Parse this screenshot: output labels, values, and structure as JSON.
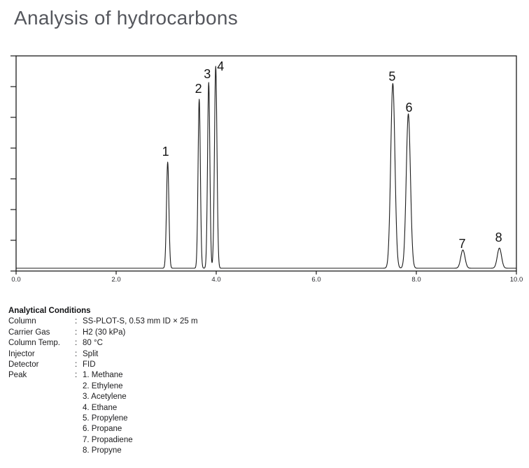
{
  "title": "Analysis of hydrocarbons",
  "chart_data": {
    "type": "line",
    "description": "Gas chromatogram (FID signal vs retention time, min)",
    "xlabel": "",
    "ylabel": "",
    "xlim": [
      0.0,
      10.0
    ],
    "ylim": [
      0.0,
      1.0
    ],
    "grid": false,
    "legend": "none",
    "x_ticks": [
      0.0,
      2.0,
      4.0,
      6.0,
      8.0,
      10.0
    ],
    "x_tick_labels": [
      "0.0",
      "2.0",
      "4.0",
      "6.0",
      "8.0",
      "10.0"
    ],
    "y_axis": {
      "tick_count": 8,
      "labels_visible": false
    },
    "baseline_value": 0.0,
    "peaks": [
      {
        "label": "1",
        "name": "Methane",
        "time": 3.03,
        "height": 0.5,
        "sigma": 0.024,
        "label_dx": -3,
        "label_dy": -9
      },
      {
        "label": "2",
        "name": "Ethylene",
        "time": 3.66,
        "height": 0.796,
        "sigma": 0.023,
        "label_dx": -1,
        "label_dy": -9
      },
      {
        "label": "3",
        "name": "Acetylene",
        "time": 3.85,
        "height": 0.875,
        "sigma": 0.023,
        "label_dx": -2,
        "label_dy": -6
      },
      {
        "label": "4",
        "name": "Ethane",
        "time": 3.99,
        "height": 0.951,
        "sigma": 0.025,
        "label_dx": 7,
        "label_dy": 6
      },
      {
        "label": "5",
        "name": "Propylene",
        "time": 7.53,
        "height": 0.87,
        "sigma": 0.042,
        "label_dx": -1,
        "label_dy": -4
      },
      {
        "label": "6",
        "name": "Propane",
        "time": 7.84,
        "height": 0.727,
        "sigma": 0.042,
        "label_dx": 1,
        "label_dy": -3
      },
      {
        "label": "7",
        "name": "Propadiene",
        "time": 8.93,
        "height": 0.086,
        "sigma": 0.042,
        "label_dx": -1,
        "label_dy": -3
      },
      {
        "label": "8",
        "name": "Propyne",
        "time": 9.66,
        "height": 0.095,
        "sigma": 0.042,
        "label_dx": -1,
        "label_dy": -9
      }
    ]
  },
  "conditions": {
    "heading": "Analytical Conditions",
    "rows": [
      {
        "label": "Column",
        "value": "SS-PLOT-S, 0.53 mm ID × 25 m"
      },
      {
        "label": "Carrier Gas",
        "value": "H2 (30 kPa)"
      },
      {
        "label": "Column Temp.",
        "value": "80 °C"
      },
      {
        "label": "Injector",
        "value": "Split"
      },
      {
        "label": "Detector",
        "value": "FID"
      }
    ],
    "peak_label": "Peak"
  },
  "colors": {
    "title": "#55575d",
    "trace": "#1b1b1b",
    "axis": "#1b1b1b",
    "tick_label": "#26272c",
    "peak_label": "#141414",
    "background": "#ffffff"
  }
}
